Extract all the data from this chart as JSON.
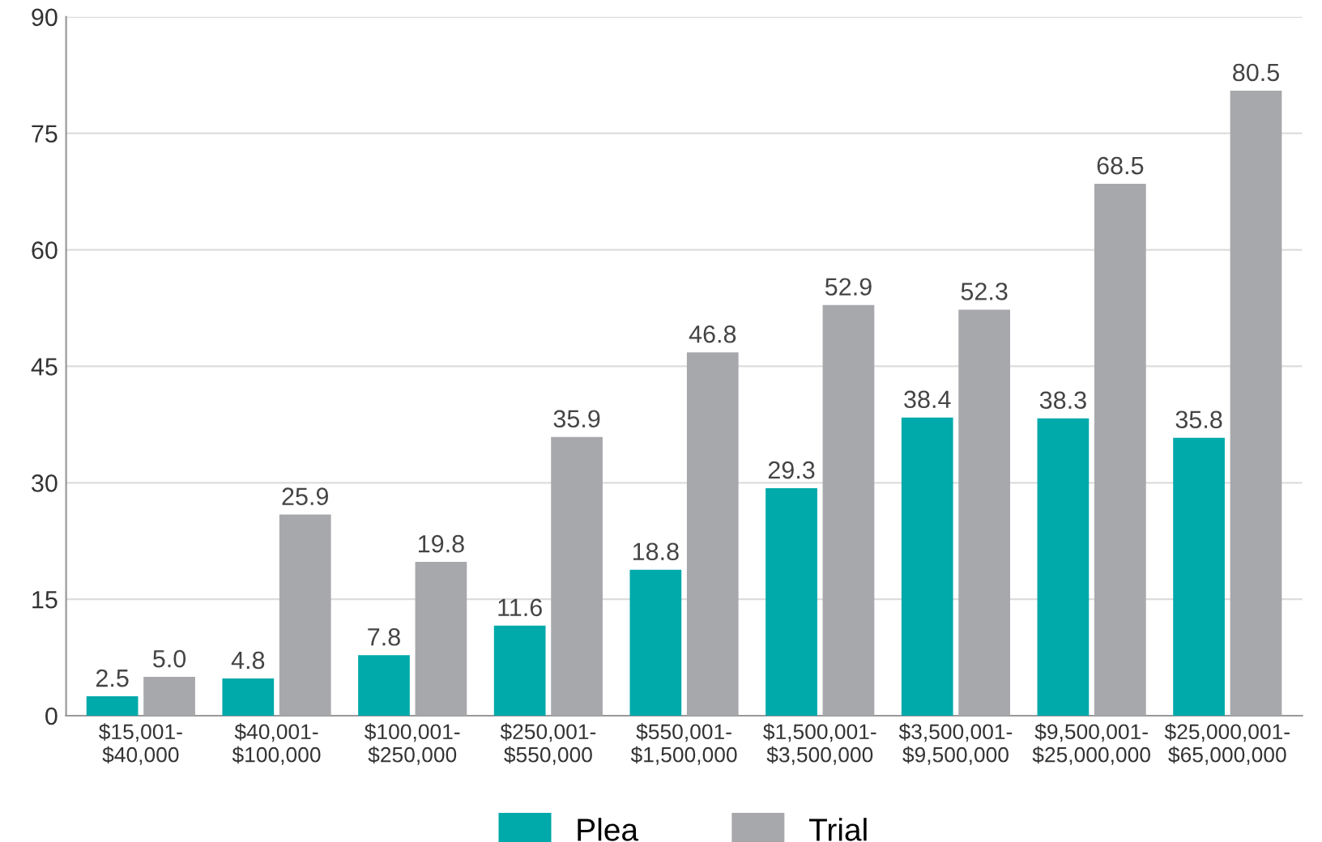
{
  "chart_data": {
    "type": "bar",
    "categories": [
      "$15,001-\n$40,000",
      "$40,001-\n$100,000",
      "$100,001-\n$250,000",
      "$250,001-\n$550,000",
      "$550,001-\n$1,500,000",
      "$1,500,001-\n$3,500,000",
      "$3,500,001-\n$9,500,000",
      "$9,500,001-\n$25,000,000",
      "$25,000,001-\n$65,000,000"
    ],
    "series": [
      {
        "name": "Plea",
        "color": "#00a9aa",
        "values": [
          2.5,
          4.8,
          7.8,
          11.6,
          18.8,
          29.3,
          38.4,
          38.3,
          35.8
        ],
        "value_labels": [
          "2.5",
          "4.8",
          "7.8",
          "11.6",
          "18.8",
          "29.3",
          "38.4",
          "38.3",
          "35.8"
        ]
      },
      {
        "name": "Trial",
        "color": "#a7a8ab",
        "values": [
          5.0,
          25.9,
          19.8,
          35.9,
          46.8,
          52.9,
          52.3,
          68.5,
          80.5
        ],
        "value_labels": [
          "5.0",
          "25.9",
          "19.8",
          "35.9",
          "46.8",
          "52.9",
          "52.3",
          "68.5",
          "80.5"
        ]
      }
    ],
    "ylim": [
      0,
      90
    ],
    "yticks": [
      0,
      15,
      30,
      45,
      60,
      75,
      90
    ],
    "grid": "y",
    "legend": "bottom"
  }
}
